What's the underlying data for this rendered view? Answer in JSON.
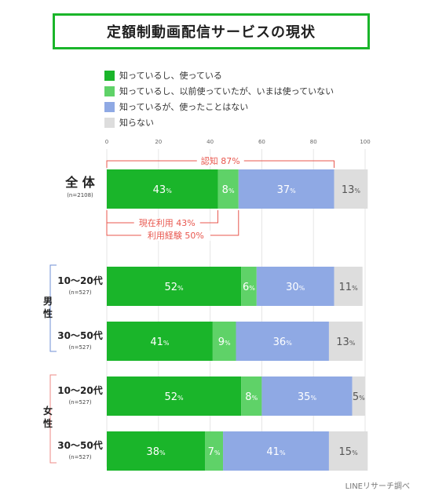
{
  "title": "定額制動画配信サービスの現状",
  "source": "LINEリサーチ調べ",
  "legend": [
    {
      "label": "知っているし、使っている",
      "color": "#1ab52a"
    },
    {
      "label": "知っているし、以前使っていたが、いまは使っていない",
      "color": "#5fd268"
    },
    {
      "label": "知っているが、使ったことはない",
      "color": "#8fa9e4"
    },
    {
      "label": "知らない",
      "color": "#dddddd"
    }
  ],
  "annotations": {
    "awareness": "認知 87%",
    "current": "現在利用 43%",
    "experience": "利用経験 50%",
    "annotation_color": "#e8574e"
  },
  "groups": {
    "male": "男性",
    "female": "女性"
  },
  "chart_data": {
    "type": "bar",
    "orientation": "horizontal",
    "stacked": true,
    "xlim": [
      0,
      100
    ],
    "ticks": [
      "0",
      "20",
      "40",
      "60",
      "80",
      "100"
    ],
    "rows": [
      {
        "label": "全 体",
        "sub": "(n=2108)"
      },
      {
        "label": "10〜20代",
        "sub": "(n=527)"
      },
      {
        "label": "30〜50代",
        "sub": "(n=527)"
      },
      {
        "label": "10〜20代",
        "sub": "(n=527)"
      },
      {
        "label": "30〜50代",
        "sub": "(n=527)"
      }
    ],
    "series": [
      {
        "name": "知っているし、使っている",
        "color": "#1ab52a",
        "values": [
          43,
          52,
          41,
          52,
          38
        ],
        "labels": [
          "43%",
          "52%",
          "41%",
          "52%",
          "38%"
        ]
      },
      {
        "name": "知っているし、以前使っていたが、いまは使っていない",
        "color": "#5fd268",
        "values": [
          8,
          6,
          9,
          8,
          7
        ],
        "labels": [
          "8%",
          "6%",
          "9%",
          "8%",
          "7%"
        ]
      },
      {
        "name": "知っているが、使ったことはない",
        "color": "#8fa9e4",
        "values": [
          37,
          30,
          36,
          35,
          41
        ],
        "labels": [
          "37%",
          "30%",
          "36%",
          "35%",
          "41%"
        ]
      },
      {
        "name": "知らない",
        "color": "#dddddd",
        "values": [
          13,
          11,
          13,
          5,
          15
        ],
        "labels": [
          "13%",
          "11%",
          "13%",
          "5%",
          "15%"
        ]
      }
    ]
  }
}
